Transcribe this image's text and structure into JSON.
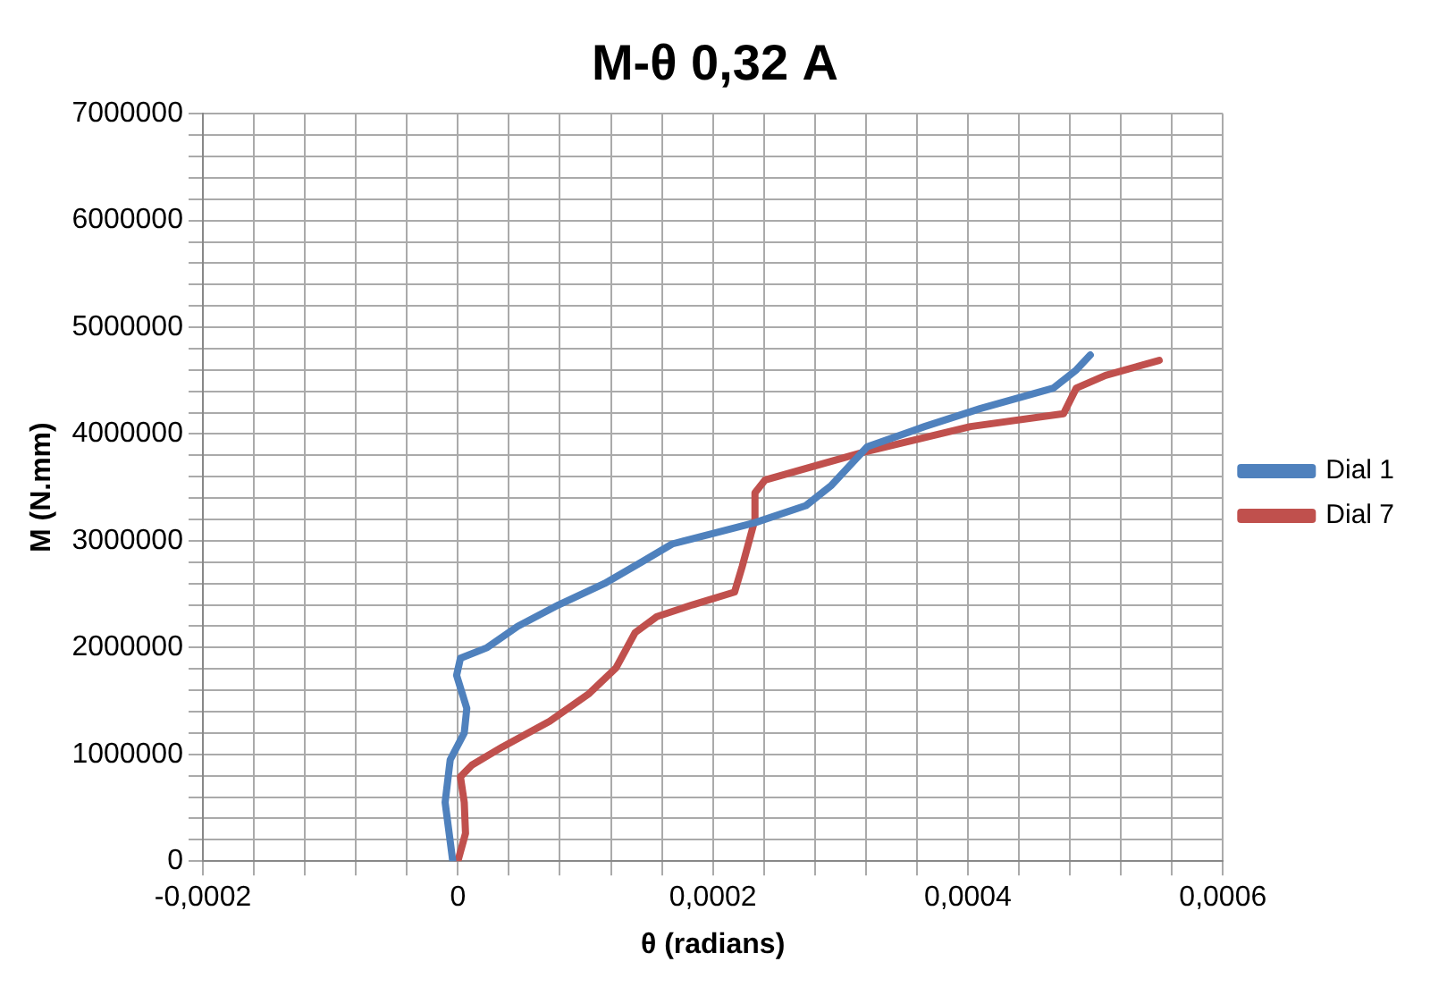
{
  "chart_data": {
    "type": "line",
    "title": "M-θ 0,32 A",
    "xlabel": "θ (radians)",
    "ylabel": "M (N.mm)",
    "xlim": [
      -0.0002,
      0.0006
    ],
    "xticks": [
      {
        "value": -0.0002,
        "label": "-0,0002"
      },
      {
        "value": -0.00016,
        "label": null
      },
      {
        "value": -0.00012,
        "label": null
      },
      {
        "value": -8e-05,
        "label": null
      },
      {
        "value": -4e-05,
        "label": null
      },
      0,
      {
        "value": 4e-05,
        "label": null
      },
      {
        "value": 8e-05,
        "label": null
      },
      {
        "value": 0.00012,
        "label": null
      },
      {
        "value": 0.00016,
        "label": null
      },
      {
        "value": 0.0002,
        "label": "0,0002"
      },
      {
        "value": 0.00024,
        "label": null
      },
      {
        "value": 0.00028,
        "label": null
      },
      {
        "value": 0.00032,
        "label": null
      },
      {
        "value": 0.00036,
        "label": null
      },
      {
        "value": 0.0004,
        "label": "0,0004"
      },
      {
        "value": 0.00044,
        "label": null
      },
      {
        "value": 0.00048,
        "label": null
      },
      {
        "value": 0.00052,
        "label": null
      },
      {
        "value": 0.00056,
        "label": null
      },
      {
        "value": 0.0006,
        "label": "0,0006"
      }
    ],
    "ylim": [
      0,
      7000000
    ],
    "yticks": [
      0,
      {
        "value": 200000,
        "label": null
      },
      {
        "value": 400000,
        "label": null
      },
      {
        "value": 600000,
        "label": null
      },
      {
        "value": 800000,
        "label": null
      },
      1000000,
      {
        "value": 1200000,
        "label": null
      },
      {
        "value": 1400000,
        "label": null
      },
      {
        "value": 1600000,
        "label": null
      },
      {
        "value": 1800000,
        "label": null
      },
      2000000,
      {
        "value": 2200000,
        "label": null
      },
      {
        "value": 2400000,
        "label": null
      },
      {
        "value": 2600000,
        "label": null
      },
      {
        "value": 2800000,
        "label": null
      },
      3000000,
      {
        "value": 3200000,
        "label": null
      },
      {
        "value": 3400000,
        "label": null
      },
      {
        "value": 3600000,
        "label": null
      },
      {
        "value": 3800000,
        "label": null
      },
      4000000,
      {
        "value": 4200000,
        "label": null
      },
      {
        "value": 4400000,
        "label": null
      },
      {
        "value": 4600000,
        "label": null
      },
      {
        "value": 4800000,
        "label": null
      },
      5000000,
      {
        "value": 5200000,
        "label": null
      },
      {
        "value": 5400000,
        "label": null
      },
      {
        "value": 5600000,
        "label": null
      },
      {
        "value": 5800000,
        "label": null
      },
      6000000,
      {
        "value": 6200000,
        "label": null
      },
      {
        "value": 6400000,
        "label": null
      },
      {
        "value": 6600000,
        "label": null
      },
      {
        "value": 6800000,
        "label": null
      },
      7000000
    ],
    "grid": true,
    "legend": "right",
    "marker": "none",
    "line_style": "solid",
    "series": [
      {
        "name": "Dial 1",
        "color": "#4f81bd",
        "x": [
          -4e-06,
          -1e-05,
          -6e-06,
          5e-06,
          7e-06,
          -1e-06,
          2e-06,
          2.3e-05,
          4.7e-05,
          7.9e-05,
          0.000115,
          0.000144,
          0.000168,
          0.000184,
          0.000233,
          0.000273,
          0.000293,
          0.000321,
          0.000366,
          0.00041,
          0.000467,
          0.000485,
          0.000496
        ],
        "values": [
          0,
          550000,
          950000,
          1200000,
          1430000,
          1740000,
          1900000,
          2000000,
          2200000,
          2400000,
          2600000,
          2800000,
          2970000,
          3020000,
          3170000,
          3330000,
          3520000,
          3880000,
          4070000,
          4240000,
          4430000,
          4600000,
          4740000
        ]
      },
      {
        "name": "Dial 7",
        "color": "#c0504d",
        "x": [
          0,
          6e-06,
          5e-06,
          2e-06,
          1.1e-05,
          3.5e-05,
          7.2e-05,
          0.000103,
          0.000124,
          0.000139,
          0.000156,
          0.000184,
          0.000217,
          0.000223,
          0.000233,
          0.000233,
          0.000241,
          0.000318,
          0.000402,
          0.000475,
          0.000485,
          0.000508,
          0.00055
        ],
        "values": [
          0,
          260000,
          550000,
          790000,
          900000,
          1070000,
          1310000,
          1570000,
          1810000,
          2140000,
          2290000,
          2400000,
          2520000,
          2760000,
          3200000,
          3450000,
          3570000,
          3830000,
          4070000,
          4190000,
          4430000,
          4550000,
          4690000
        ]
      }
    ]
  }
}
